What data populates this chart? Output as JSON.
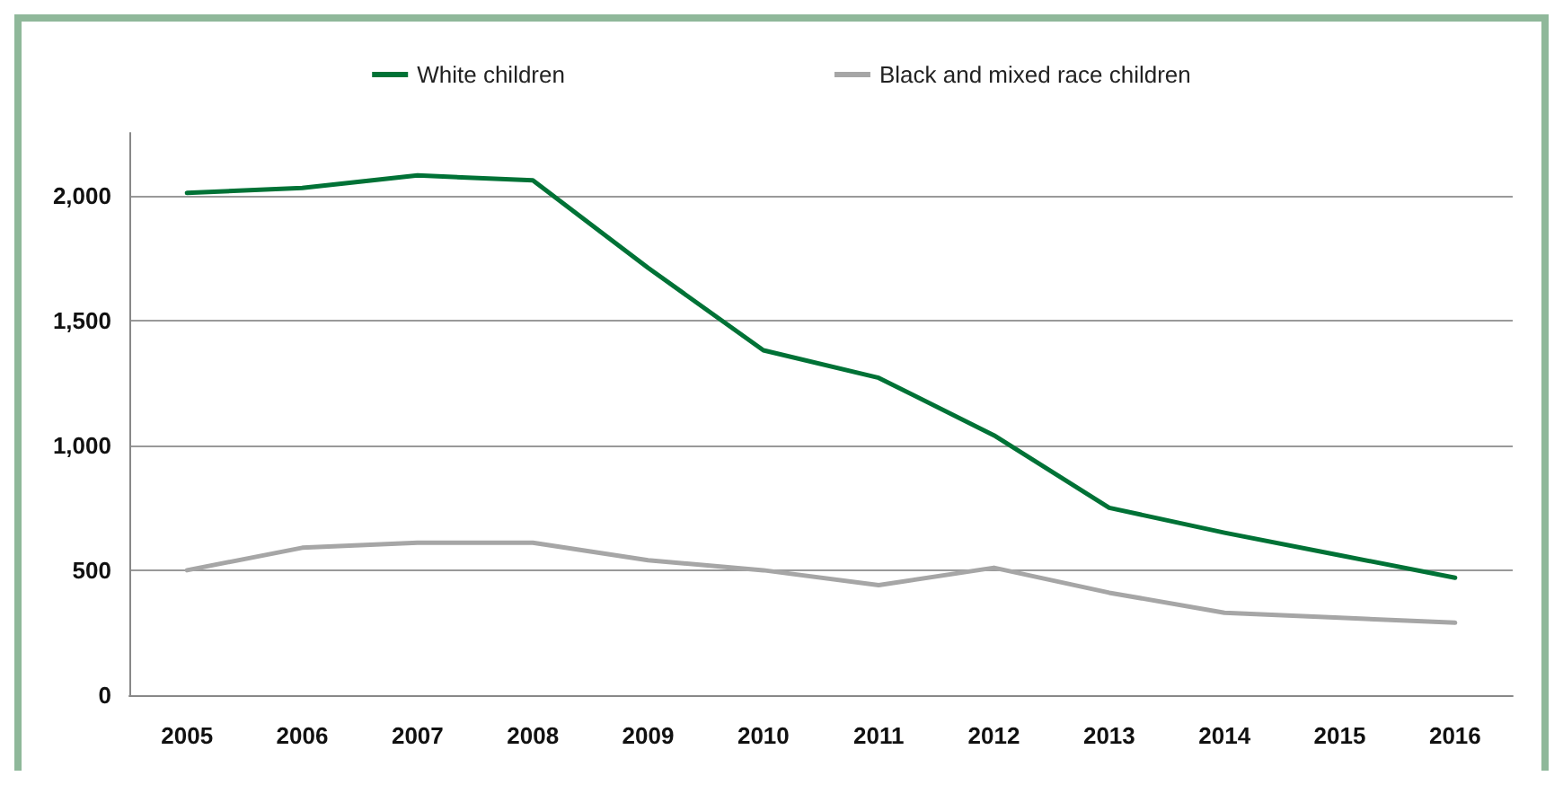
{
  "chart_data": {
    "type": "line",
    "categories": [
      "2005",
      "2006",
      "2007",
      "2008",
      "2009",
      "2010",
      "2011",
      "2012",
      "2013",
      "2014",
      "2015",
      "2016"
    ],
    "series": [
      {
        "name": "White children",
        "color": "#007236",
        "values": [
          2010,
          2030,
          2080,
          2060,
          1710,
          1380,
          1270,
          1040,
          750,
          650,
          560,
          470
        ]
      },
      {
        "name": "Black and mixed race children",
        "color": "#a6a6a6",
        "values": [
          500,
          590,
          610,
          610,
          540,
          500,
          440,
          510,
          410,
          330,
          310,
          290
        ]
      }
    ],
    "ylim": [
      0,
      2250
    ],
    "yticks": [
      0,
      500,
      {
        "value": 1000,
        "label": "1,000"
      },
      {
        "value": 1500,
        "label": "1,500"
      },
      {
        "value": 2000,
        "label": "2,000"
      }
    ],
    "grid": "y",
    "legend": "top",
    "marker": "none",
    "line_style": "solid"
  }
}
